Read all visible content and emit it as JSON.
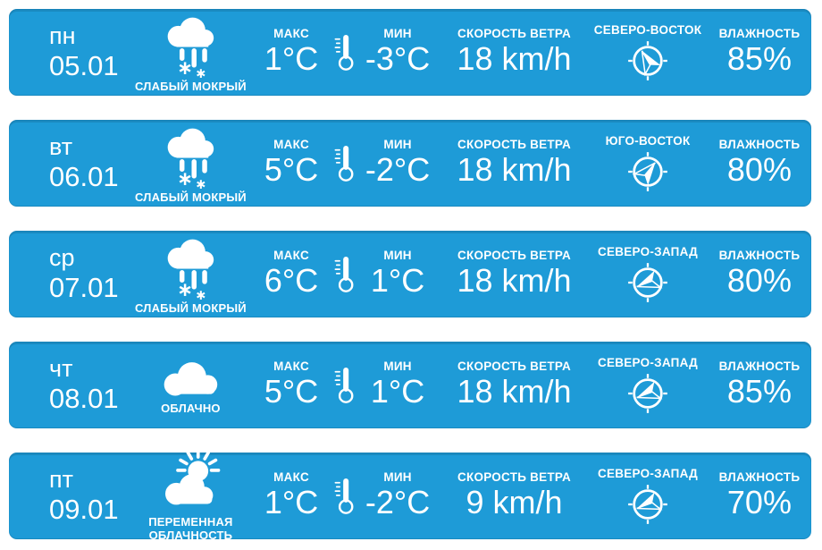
{
  "widget": {
    "type": "weather-forecast",
    "card_background": "#1e9bd7",
    "card_edge_shade": "#1781b5",
    "text_color": "#ffffff"
  },
  "labels": {
    "max": "МАКС",
    "min": "МИН",
    "wind_speed": "СКОРОСТЬ ВЕТРА",
    "humidity": "ВЛАЖНОСТЬ"
  },
  "days": [
    {
      "day": "пн",
      "date": "05.01",
      "condition": "СЛАБЫЙ МОКРЫЙ",
      "condition_icon": "cloud-sleet-icon",
      "max_temp": "1°C",
      "min_temp": "-3°C",
      "wind_speed": "18 km/h",
      "wind_direction": "СЕВЕРО-ВОСТОК",
      "wind_arrow_rotation_deg": "-30",
      "humidity": "85%"
    },
    {
      "day": "вт",
      "date": "06.01",
      "condition": "СЛАБЫЙ МОКРЫЙ",
      "condition_icon": "cloud-sleet-icon",
      "max_temp": "5°C",
      "min_temp": "-2°C",
      "wind_speed": "18 km/h",
      "wind_direction": "ЮГО-ВОСТОК",
      "wind_arrow_rotation_deg": "40",
      "humidity": "80%"
    },
    {
      "day": "ср",
      "date": "07.01",
      "condition": "СЛАБЫЙ МОКРЫЙ",
      "condition_icon": "cloud-sleet-icon",
      "max_temp": "6°C",
      "min_temp": "1°C",
      "wind_speed": "18 km/h",
      "wind_direction": "СЕВЕРО-ЗАПАД",
      "wind_arrow_rotation_deg": "250",
      "humidity": "80%"
    },
    {
      "day": "чт",
      "date": "08.01",
      "condition": "ОБЛАЧНО",
      "condition_icon": "cloud-icon",
      "max_temp": "5°C",
      "min_temp": "1°C",
      "wind_speed": "18 km/h",
      "wind_direction": "СЕВЕРО-ЗАПАД",
      "wind_arrow_rotation_deg": "250",
      "humidity": "85%"
    },
    {
      "day": "пт",
      "date": "09.01",
      "condition": "ПЕРЕМЕННАЯ ОБЛАЧНОСТЬ",
      "condition_icon": "sun-cloud-icon",
      "max_temp": "1°C",
      "min_temp": "-2°C",
      "wind_speed": "9 km/h",
      "wind_direction": "СЕВЕРО-ЗАПАД",
      "wind_arrow_rotation_deg": "250",
      "humidity": "70%"
    }
  ]
}
